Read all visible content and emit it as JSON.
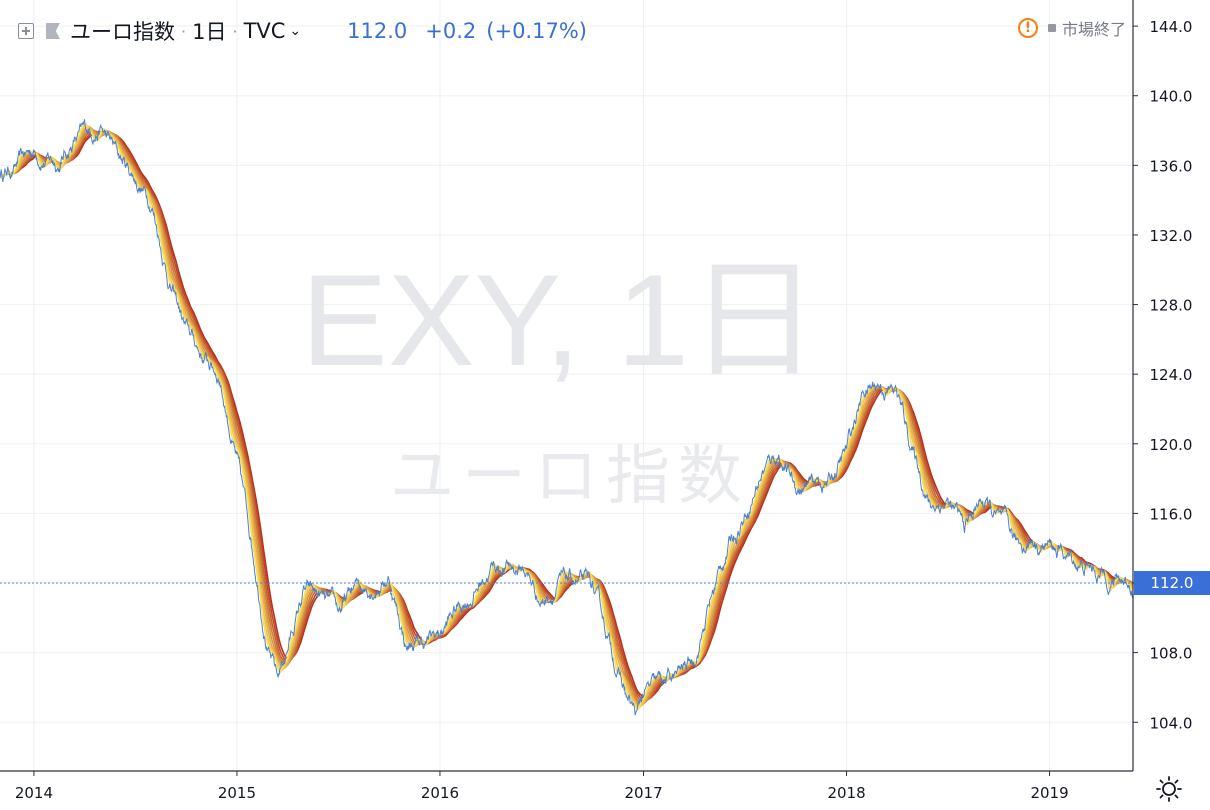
{
  "header": {
    "symbol_name": "ユーロ指数",
    "interval": "1日",
    "exchange": "TVC",
    "last_value": "112.0",
    "change": "+0.2",
    "change_percent": "(+0.17%)",
    "market_status": "市場終了"
  },
  "watermark": {
    "line1": "EXY, 1日",
    "line2": "ユーロ指数"
  },
  "price_label": "112.0",
  "icons": [
    "add-compare-icon",
    "symbol-flag-icon",
    "chevron-down-icon",
    "warning-icon",
    "market-closed-icon",
    "settings-gear-icon"
  ],
  "colors": {
    "price_line": "#4a7fd6",
    "ribbon_fast": "#f7e05a",
    "ribbon_slow": "#b5301f",
    "price_badge": "#3a6fd8",
    "grid": "#eef0f3"
  },
  "chart_data": {
    "type": "line",
    "x_axis": {
      "ticks": [
        "2014",
        "2015",
        "2016",
        "2017",
        "2018",
        "2019"
      ],
      "range": [
        "2013-11-01",
        "2019-05-31"
      ]
    },
    "y_axis": {
      "position": "right",
      "ticks": [
        "104.0",
        "108.0",
        "112.0",
        "116.0",
        "120.0",
        "124.0",
        "128.0",
        "132.0",
        "136.0",
        "140.0",
        "144.0"
      ],
      "range": [
        101.2,
        145.5
      ]
    },
    "grid": true,
    "current_price_line": 112.0,
    "series": [
      {
        "kind": "price",
        "x": [
          "2013-11-01",
          "2013-12-01",
          "2014-01-01",
          "2014-02-15",
          "2014-03-15",
          "2014-05-01",
          "2014-06-01",
          "2014-07-01",
          "2014-08-01",
          "2014-09-01",
          "2014-10-01",
          "2014-11-01",
          "2014-12-01",
          "2015-01-01",
          "2015-02-01",
          "2015-03-01",
          "2015-03-15",
          "2015-04-01",
          "2015-05-01",
          "2015-06-01",
          "2015-07-01",
          "2015-08-01",
          "2015-09-01",
          "2015-10-01",
          "2015-11-01",
          "2015-12-01",
          "2016-01-01",
          "2016-02-01",
          "2016-03-01",
          "2016-04-01",
          "2016-05-01",
          "2016-06-01",
          "2016-07-01",
          "2016-08-01",
          "2016-09-01",
          "2016-10-01",
          "2016-11-01",
          "2016-12-01",
          "2016-12-20",
          "2017-01-01",
          "2017-02-01",
          "2017-03-01",
          "2017-04-01",
          "2017-05-01",
          "2017-06-01",
          "2017-07-01",
          "2017-08-01",
          "2017-09-01",
          "2017-10-01",
          "2017-11-01",
          "2017-12-01",
          "2018-01-01",
          "2018-02-01",
          "2018-03-01",
          "2018-04-01",
          "2018-05-01",
          "2018-06-01",
          "2018-07-01",
          "2018-08-01",
          "2018-09-01",
          "2018-10-01",
          "2018-11-01",
          "2018-12-01",
          "2019-01-01",
          "2019-02-01",
          "2019-03-01",
          "2019-04-01",
          "2019-05-01",
          "2019-05-31"
        ],
        "y": [
          135.5,
          136.0,
          136.8,
          136.2,
          137.5,
          138.2,
          136.5,
          135.3,
          134.0,
          129.5,
          126.5,
          125.0,
          124.0,
          119.0,
          113.5,
          108.0,
          106.5,
          108.2,
          111.5,
          111.0,
          110.0,
          111.5,
          112.0,
          112.5,
          108.5,
          108.5,
          109.0,
          110.5,
          111.5,
          113.0,
          113.0,
          112.8,
          111.0,
          112.0,
          112.0,
          111.5,
          108.5,
          105.5,
          104.2,
          105.5,
          106.0,
          106.5,
          107.5,
          111.0,
          114.0,
          116.0,
          118.5,
          119.5,
          117.5,
          117.5,
          117.8,
          119.5,
          123.0,
          123.5,
          123.0,
          119.5,
          116.5,
          116.8,
          115.0,
          116.8,
          115.5,
          114.0,
          114.5,
          114.2,
          113.5,
          113.0,
          112.5,
          112.3,
          112.0
        ]
      },
      {
        "kind": "moving-average-ribbon",
        "count": 8,
        "from_color": "#f7e05a",
        "to_color": "#b5301f"
      }
    ]
  }
}
